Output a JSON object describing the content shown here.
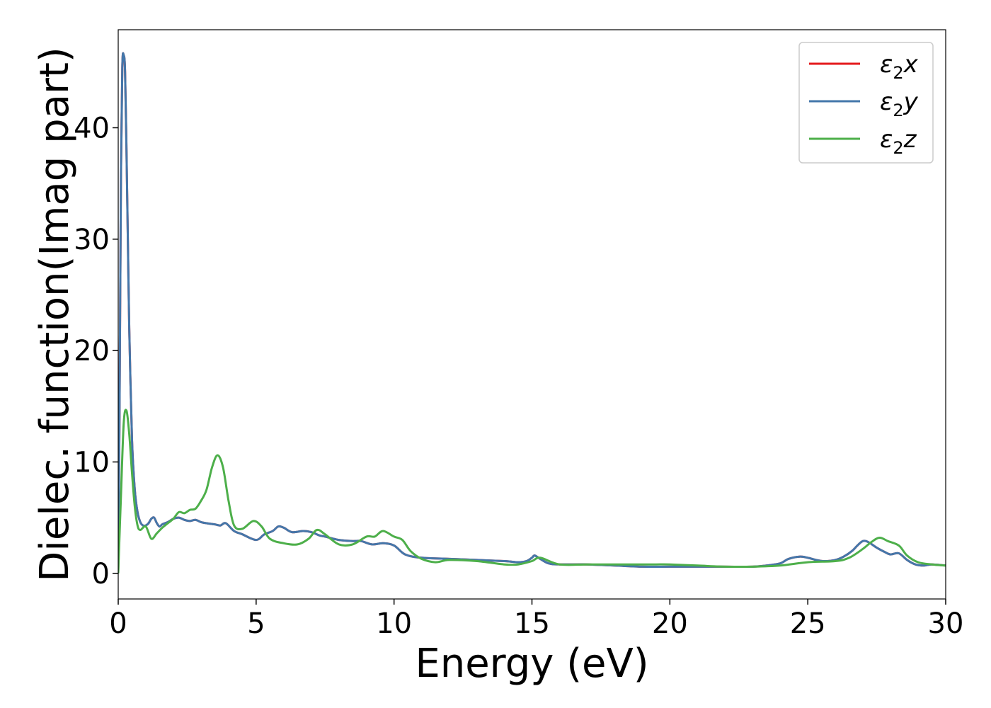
{
  "chart_data": {
    "type": "line",
    "title": "",
    "xlabel": "Energy (eV)",
    "ylabel": "Dielec. function(Imag part)",
    "xlim": [
      0,
      30
    ],
    "ylim": [
      -2.3,
      48.8
    ],
    "xticks": [
      0,
      5,
      10,
      15,
      20,
      25,
      30
    ],
    "yticks": [
      0,
      10,
      20,
      30,
      40
    ],
    "grid": false,
    "legend_position": "top-right",
    "series": [
      {
        "name": "ε₂x",
        "legend_main": "ε",
        "legend_sub": "2",
        "legend_var": "x",
        "color": "#e41a1c",
        "x": [
          0,
          0.05,
          0.1,
          0.15,
          0.2,
          0.25,
          0.3,
          0.35,
          0.4,
          0.5,
          0.6,
          0.7,
          0.8,
          0.9,
          1.0,
          1.1,
          1.2,
          1.3,
          1.4,
          1.5,
          1.6,
          1.8,
          2.0,
          2.2,
          2.4,
          2.6,
          2.8,
          3.0,
          3.2,
          3.5,
          3.7,
          3.9,
          4.2,
          4.5,
          5.0,
          5.3,
          5.6,
          5.8,
          6.0,
          6.3,
          6.7,
          7.0,
          7.3,
          7.5,
          8.0,
          8.5,
          8.8,
          9.2,
          9.6,
          10.0,
          10.4,
          11.0,
          12.0,
          13.0,
          14.0,
          14.5,
          14.8,
          15.0,
          15.1,
          15.3,
          15.6,
          16.0,
          17.0,
          18.0,
          19.0,
          20.0,
          21.0,
          22.0,
          23.0,
          23.5,
          24.0,
          24.3,
          24.7,
          25.0,
          25.3,
          25.6,
          26.0,
          26.3,
          26.6,
          26.8,
          27.0,
          27.2,
          27.5,
          27.8,
          28.0,
          28.3,
          28.6,
          28.9,
          29.2,
          29.5,
          30.0
        ],
        "y": [
          0,
          15,
          36,
          45.5,
          46.5,
          45,
          38,
          30,
          22,
          12,
          7.5,
          5.5,
          4.6,
          4.3,
          4.3,
          4.5,
          4.9,
          5.0,
          4.5,
          4.2,
          4.4,
          4.6,
          4.9,
          5.0,
          4.8,
          4.7,
          4.8,
          4.6,
          4.5,
          4.4,
          4.3,
          4.5,
          3.8,
          3.5,
          3.0,
          3.5,
          3.8,
          4.2,
          4.1,
          3.7,
          3.8,
          3.7,
          3.4,
          3.3,
          3.0,
          2.9,
          2.9,
          2.6,
          2.7,
          2.5,
          1.7,
          1.4,
          1.3,
          1.2,
          1.1,
          1.0,
          1.1,
          1.4,
          1.6,
          1.3,
          0.9,
          0.8,
          0.8,
          0.7,
          0.6,
          0.6,
          0.6,
          0.6,
          0.6,
          0.7,
          0.9,
          1.3,
          1.5,
          1.4,
          1.2,
          1.1,
          1.2,
          1.5,
          2.0,
          2.5,
          2.9,
          2.8,
          2.3,
          1.9,
          1.7,
          1.8,
          1.2,
          0.8,
          0.7,
          0.8,
          0.7
        ]
      },
      {
        "name": "ε₂y",
        "legend_main": "ε",
        "legend_sub": "2",
        "legend_var": "y",
        "color": "#4477aa",
        "x": [
          0,
          0.05,
          0.1,
          0.15,
          0.2,
          0.25,
          0.3,
          0.35,
          0.4,
          0.5,
          0.6,
          0.7,
          0.8,
          0.9,
          1.0,
          1.1,
          1.2,
          1.3,
          1.4,
          1.5,
          1.6,
          1.8,
          2.0,
          2.2,
          2.4,
          2.6,
          2.8,
          3.0,
          3.2,
          3.5,
          3.7,
          3.9,
          4.2,
          4.5,
          5.0,
          5.3,
          5.6,
          5.8,
          6.0,
          6.3,
          6.7,
          7.0,
          7.3,
          7.5,
          8.0,
          8.5,
          8.8,
          9.2,
          9.6,
          10.0,
          10.4,
          11.0,
          12.0,
          13.0,
          14.0,
          14.5,
          14.8,
          15.0,
          15.1,
          15.3,
          15.6,
          16.0,
          17.0,
          18.0,
          19.0,
          20.0,
          21.0,
          22.0,
          23.0,
          23.5,
          24.0,
          24.3,
          24.7,
          25.0,
          25.3,
          25.6,
          26.0,
          26.3,
          26.6,
          26.8,
          27.0,
          27.2,
          27.5,
          27.8,
          28.0,
          28.3,
          28.6,
          28.9,
          29.2,
          29.5,
          30.0
        ],
        "y": [
          0,
          15,
          36,
          45.5,
          46.5,
          45,
          38,
          30,
          22,
          12,
          7.5,
          5.5,
          4.6,
          4.3,
          4.3,
          4.5,
          4.9,
          5.0,
          4.5,
          4.2,
          4.4,
          4.6,
          4.9,
          5.0,
          4.8,
          4.7,
          4.8,
          4.6,
          4.5,
          4.4,
          4.3,
          4.5,
          3.8,
          3.5,
          3.0,
          3.5,
          3.8,
          4.2,
          4.1,
          3.7,
          3.8,
          3.7,
          3.4,
          3.3,
          3.0,
          2.9,
          2.9,
          2.6,
          2.7,
          2.5,
          1.7,
          1.4,
          1.3,
          1.2,
          1.1,
          1.0,
          1.1,
          1.4,
          1.6,
          1.3,
          0.9,
          0.8,
          0.8,
          0.7,
          0.6,
          0.6,
          0.6,
          0.6,
          0.6,
          0.7,
          0.9,
          1.3,
          1.5,
          1.4,
          1.2,
          1.1,
          1.2,
          1.5,
          2.0,
          2.5,
          2.9,
          2.8,
          2.3,
          1.9,
          1.7,
          1.8,
          1.2,
          0.8,
          0.7,
          0.8,
          0.7
        ]
      },
      {
        "name": "ε₂z",
        "legend_main": "ε",
        "legend_sub": "2",
        "legend_var": "z",
        "color": "#4daf4a",
        "x": [
          0,
          0.1,
          0.2,
          0.3,
          0.4,
          0.5,
          0.6,
          0.7,
          0.8,
          1.0,
          1.2,
          1.4,
          1.6,
          1.8,
          2.0,
          2.2,
          2.4,
          2.6,
          2.8,
          3.0,
          3.2,
          3.4,
          3.6,
          3.8,
          4.0,
          4.2,
          4.5,
          4.9,
          5.2,
          5.5,
          6.0,
          6.5,
          6.9,
          7.2,
          7.5,
          8.0,
          8.5,
          9.0,
          9.3,
          9.6,
          10.0,
          10.3,
          10.6,
          11.0,
          11.5,
          12.0,
          13.0,
          14.0,
          14.5,
          15.0,
          15.3,
          16.0,
          17.0,
          18.0,
          19.0,
          19.5,
          20.0,
          21.0,
          22.0,
          23.0,
          24.0,
          25.0,
          26.0,
          26.5,
          27.0,
          27.3,
          27.6,
          27.9,
          28.3,
          28.6,
          29.0,
          29.5,
          30.0
        ],
        "y": [
          0,
          7,
          13.5,
          14.6,
          12.5,
          9,
          6,
          4.3,
          3.9,
          4.2,
          3.1,
          3.6,
          4.1,
          4.5,
          4.9,
          5.5,
          5.4,
          5.7,
          5.8,
          6.5,
          7.5,
          9.5,
          10.6,
          9.5,
          6.5,
          4.3,
          4.0,
          4.7,
          4.2,
          3.1,
          2.7,
          2.6,
          3.1,
          3.9,
          3.5,
          2.6,
          2.6,
          3.3,
          3.3,
          3.8,
          3.3,
          3.0,
          2.0,
          1.3,
          1.0,
          1.2,
          1.1,
          0.8,
          0.8,
          1.1,
          1.4,
          0.8,
          0.8,
          0.8,
          0.8,
          0.8,
          0.8,
          0.7,
          0.6,
          0.6,
          0.7,
          1.0,
          1.1,
          1.4,
          2.2,
          2.8,
          3.2,
          2.9,
          2.5,
          1.6,
          1.0,
          0.8,
          0.7
        ]
      }
    ]
  }
}
